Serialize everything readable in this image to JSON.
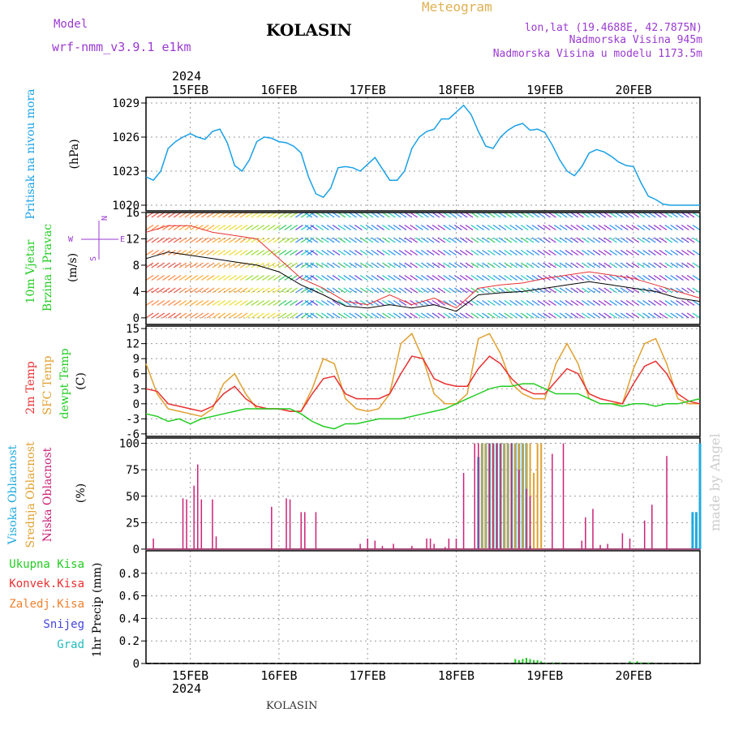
{
  "header": {
    "model_label": "Model",
    "model_name": "wrf-nmm_v3.9.1 e1km",
    "station": "KOLASIN",
    "meteogram": "Meteogram",
    "lonlat": "lon,lat (19.4688E, 42.7875N)",
    "altitude": "Nadmorska Visina 945m",
    "model_altitude": "Nadmorska Visina u modelu 1173.5m",
    "footer_station": "KOLASIN",
    "watermark": "made by Angel"
  },
  "colors": {
    "pressure": "#1aa0e6",
    "temp2m": "#e83030",
    "sfc": "#e0a030",
    "dew": "#22cc22",
    "high_cloud": "#22aadd",
    "mid_cloud": "#e0a030",
    "low_cloud": "#cc2277",
    "total": "#22cc22",
    "conv": "#e83030",
    "frozen": "#f08030",
    "snow": "#4444dd",
    "graupel": "#22bbbb",
    "purple": "#9a3ad0",
    "meteogram": "#e0b050",
    "watermark": "#cccccc"
  },
  "chart_data": [
    {
      "type": "line",
      "panel": "pressure",
      "ylabel_rot": "Pritisak na nivou mora",
      "unit": "(hPa)",
      "ylim": [
        1019.5,
        1029.5
      ],
      "yticks": [
        1020,
        1023,
        1026,
        1029
      ],
      "x_range": [
        0,
        150
      ],
      "series": [
        {
          "x": [
            0,
            2,
            4,
            6,
            8,
            10,
            12,
            14,
            16,
            18,
            20,
            22,
            24,
            26,
            28,
            30,
            32,
            34,
            36,
            38,
            40,
            42,
            44,
            46,
            48,
            50,
            52,
            54,
            56,
            58,
            60,
            62,
            64,
            66,
            68,
            70,
            72,
            74,
            76,
            78,
            80,
            82,
            84,
            86,
            88,
            90,
            92,
            94,
            96,
            98,
            100,
            102,
            104,
            106,
            108,
            110,
            112,
            114,
            116,
            118,
            120,
            122,
            124,
            126,
            128,
            130,
            132,
            134,
            136,
            138,
            140,
            142,
            144,
            146,
            148,
            150
          ],
          "y": [
            1022.5,
            1022.2,
            1023,
            1025,
            1025.6,
            1026,
            1026.3,
            1026,
            1025.8,
            1026.5,
            1026.7,
            1025.5,
            1023.5,
            1023,
            1024,
            1025.6,
            1026,
            1025.9,
            1025.6,
            1025.5,
            1025.2,
            1024.6,
            1022.5,
            1021,
            1020.7,
            1021.5,
            1023.3,
            1023.4,
            1023.3,
            1023,
            1023.6,
            1024.2,
            1023.2,
            1022.2,
            1022.2,
            1023,
            1025,
            1026,
            1026.5,
            1026.7,
            1027.6,
            1027.6,
            1028.2,
            1028.8,
            1028,
            1026.5,
            1025.2,
            1025,
            1026,
            1026.6,
            1027,
            1027.2,
            1026.6,
            1026.7,
            1026.4,
            1025.3,
            1024,
            1023,
            1022.6,
            1023.4,
            1024.6,
            1024.9,
            1024.7,
            1024.3,
            1023.8,
            1023.5,
            1023.4,
            1022,
            1020.8,
            1020.5,
            1020.1,
            1020,
            1020,
            1020,
            1020,
            1020
          ]
        }
      ]
    },
    {
      "type": "scatter",
      "panel": "wind",
      "ylabel_rot": [
        "10m Vjetar",
        "Brzina i Pravac"
      ],
      "unit": "(m/s)",
      "compass": {
        "n": "N",
        "w": "W",
        "e": "E",
        "s": "S"
      },
      "ylim": [
        -1,
        16
      ],
      "yticks": [
        0,
        4,
        8,
        12,
        16
      ],
      "speed": {
        "x": [
          0,
          6,
          12,
          18,
          24,
          30,
          36,
          42,
          48,
          54,
          60,
          66,
          72,
          78,
          84,
          90,
          96,
          102,
          108,
          114,
          120,
          126,
          132,
          138,
          144,
          150
        ],
        "y": [
          9,
          10,
          9.5,
          9,
          8.5,
          8,
          7,
          5,
          3.5,
          1.8,
          1.5,
          2,
          1.5,
          2,
          1,
          3.5,
          3.8,
          4,
          4.5,
          5,
          5.5,
          5,
          4.5,
          4,
          3,
          2.5
        ]
      },
      "gust": {
        "x": [
          0,
          6,
          12,
          18,
          24,
          30,
          36,
          42,
          48,
          54,
          60,
          66,
          72,
          78,
          84,
          90,
          96,
          102,
          108,
          114,
          120,
          126,
          132,
          138,
          144,
          150
        ],
        "y": [
          13,
          14,
          14,
          13,
          12.5,
          12,
          9,
          6,
          4.5,
          2.5,
          2,
          3.5,
          2,
          3,
          1.5,
          4.5,
          5,
          5.3,
          6,
          6.5,
          7,
          6.5,
          6,
          5,
          4,
          3
        ]
      }
    },
    {
      "type": "line",
      "panel": "temperature",
      "ylabel_rot": [
        "2m Temp",
        "SFC Temp",
        "dewpt Temp"
      ],
      "unit": "(C)",
      "ylim": [
        -6.5,
        15.5
      ],
      "yticks": [
        -6,
        -3,
        0,
        3,
        6,
        9,
        12,
        15
      ],
      "series": [
        {
          "key": "sfc",
          "x": [
            0,
            3,
            6,
            9,
            12,
            15,
            18,
            21,
            24,
            27,
            30,
            33,
            36,
            39,
            42,
            45,
            48,
            51,
            54,
            57,
            60,
            63,
            66,
            69,
            72,
            75,
            78,
            81,
            84,
            87,
            90,
            93,
            96,
            99,
            102,
            105,
            108,
            111,
            114,
            117,
            120,
            123,
            126,
            129,
            132,
            135,
            138,
            141,
            144,
            147,
            150
          ],
          "y": [
            8,
            2,
            -1,
            -1.5,
            -2,
            -2.5,
            -1,
            4,
            6,
            2,
            -1,
            -1,
            -1,
            -1.5,
            -1.5,
            3,
            9,
            8,
            1,
            -1,
            -1.5,
            -1,
            2,
            12,
            14,
            9,
            2,
            0,
            0,
            2,
            13,
            14,
            10,
            4,
            2,
            1,
            1,
            8,
            12,
            8,
            1,
            0,
            0,
            0,
            7,
            12,
            13,
            8,
            1,
            0,
            0
          ]
        },
        {
          "key": "t2m",
          "x": [
            0,
            3,
            6,
            9,
            12,
            15,
            18,
            21,
            24,
            27,
            30,
            33,
            36,
            39,
            42,
            45,
            48,
            51,
            54,
            57,
            60,
            63,
            66,
            69,
            72,
            75,
            78,
            81,
            84,
            87,
            90,
            93,
            96,
            99,
            102,
            105,
            108,
            111,
            114,
            117,
            120,
            123,
            126,
            129,
            132,
            135,
            138,
            141,
            144,
            147,
            150
          ],
          "y": [
            3,
            2.5,
            0,
            -0.5,
            -1,
            -1.5,
            -0.5,
            2,
            3.5,
            1,
            -0.5,
            -1,
            -1,
            -1.5,
            -1.5,
            2,
            5,
            5.5,
            2,
            1,
            1,
            1,
            2,
            6,
            9.5,
            9,
            5,
            4,
            3.5,
            3.5,
            7,
            9.5,
            8,
            5,
            3,
            2,
            2,
            4.5,
            7,
            6,
            2,
            1,
            0.5,
            0,
            4,
            7.5,
            8.5,
            6,
            2,
            0.5,
            0
          ]
        },
        {
          "key": "dew",
          "x": [
            0,
            3,
            6,
            9,
            12,
            15,
            18,
            21,
            24,
            27,
            30,
            33,
            36,
            39,
            42,
            45,
            48,
            51,
            54,
            57,
            60,
            63,
            66,
            69,
            72,
            75,
            78,
            81,
            84,
            87,
            90,
            93,
            96,
            99,
            102,
            105,
            108,
            111,
            114,
            117,
            120,
            123,
            126,
            129,
            132,
            135,
            138,
            141,
            144,
            147,
            150
          ],
          "y": [
            -2,
            -2.5,
            -3.5,
            -3,
            -4,
            -3,
            -2.5,
            -2,
            -1.5,
            -1,
            -1,
            -1,
            -1,
            -1,
            -2,
            -3.5,
            -4.5,
            -5,
            -4,
            -4,
            -3.5,
            -3,
            -3,
            -3,
            -2.5,
            -2,
            -1.5,
            -1,
            0,
            1,
            2,
            3,
            3.5,
            3.5,
            4,
            4,
            3,
            2,
            2,
            2,
            1,
            0,
            0,
            -0.5,
            0,
            0,
            -0.5,
            0,
            0,
            0.5,
            1
          ]
        }
      ]
    },
    {
      "type": "bar",
      "panel": "clouds",
      "ylabel_rot": [
        "Visoka Oblacnost",
        "Srednja Oblacnost",
        "Niska Oblacnost"
      ],
      "unit": "(%)",
      "ylim": [
        0,
        105
      ],
      "yticks": [
        0,
        25,
        50,
        75,
        100
      ],
      "low": {
        "x": [
          2,
          10,
          11,
          13,
          14,
          15,
          18,
          19,
          22,
          34,
          38,
          39,
          42,
          43,
          46,
          55,
          58,
          60,
          62,
          64,
          67,
          72,
          76,
          77,
          78,
          81,
          82,
          84,
          86,
          89,
          90,
          93,
          94,
          95,
          96,
          99,
          101,
          103,
          104,
          110,
          113,
          118,
          119,
          121,
          123,
          125,
          129,
          131,
          135,
          137,
          141
        ],
        "y": [
          10,
          48,
          47,
          60,
          80,
          47,
          47,
          12,
          0,
          40,
          48,
          47,
          35,
          35,
          35,
          0,
          5,
          10,
          8,
          3,
          5,
          3,
          10,
          10,
          5,
          2,
          10,
          10,
          72,
          100,
          100,
          100,
          100,
          100,
          100,
          100,
          75,
          57,
          50,
          90,
          100,
          8,
          30,
          38,
          4,
          5,
          15,
          10,
          27,
          42,
          88
        ]
      },
      "mid": {
        "x": [
          91,
          92,
          93,
          94,
          95,
          96,
          97,
          98,
          99,
          100,
          101,
          102,
          103,
          104,
          105,
          106,
          107
        ],
        "y": [
          100,
          100,
          100,
          100,
          100,
          100,
          100,
          100,
          100,
          100,
          100,
          100,
          100,
          100,
          72,
          100,
          100
        ]
      },
      "high": {
        "x": [
          90,
          91,
          92,
          93,
          94,
          95,
          96,
          97,
          98,
          99,
          100,
          101,
          102,
          103,
          104,
          148,
          149,
          150
        ],
        "y": [
          87,
          100,
          100,
          100,
          100,
          100,
          100,
          100,
          100,
          100,
          100,
          100,
          100,
          100,
          3,
          35,
          35,
          100
        ]
      }
    },
    {
      "type": "bar",
      "panel": "precip",
      "legend": [
        "Ukupna Kisa",
        "Konvek.Kisa",
        "Zaledj.Kisa",
        "Snijeg",
        "Grad"
      ],
      "ylabel_rot": "1hr Precip (mm)",
      "ylim": [
        0,
        1.0
      ],
      "yticks": [
        "0",
        "0.2",
        "0.4",
        "0.6",
        "0.8"
      ],
      "total": {
        "x": [
          100,
          101,
          102,
          103,
          104,
          105,
          106,
          107,
          108,
          110,
          111,
          112,
          131,
          132,
          133,
          134,
          135,
          136,
          137
        ],
        "y": [
          0.04,
          0.03,
          0.04,
          0.05,
          0.04,
          0.03,
          0.03,
          0.02,
          0.01,
          0.01,
          0.01,
          0.01,
          0.02,
          0.01,
          0.02,
          0.01,
          0.01,
          0.01,
          0.01
        ]
      }
    }
  ],
  "x_axis": {
    "labels": [
      "15FEB",
      "16FEB",
      "17FEB",
      "18FEB",
      "19FEB",
      "20FEB"
    ],
    "label_x": [
      12,
      36,
      60,
      84,
      108,
      132
    ],
    "year": "2024"
  }
}
